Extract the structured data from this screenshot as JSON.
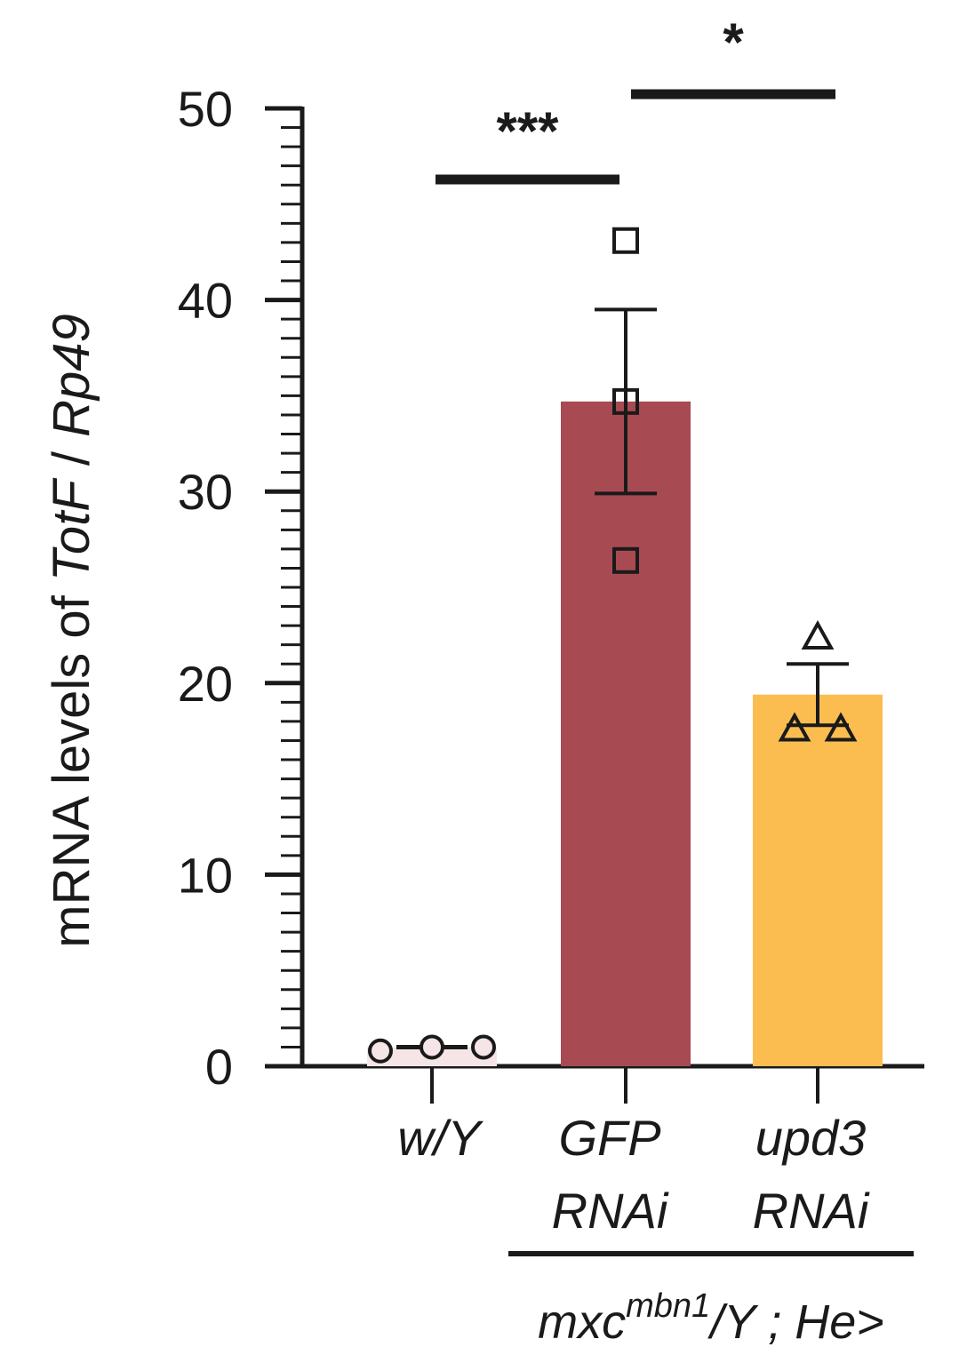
{
  "chart_data": {
    "type": "bar",
    "ylabel_parts": [
      {
        "text": "mRNA levels of ",
        "italic": false
      },
      {
        "text": "TotF",
        "italic": true
      },
      {
        "text": " / ",
        "italic": false
      },
      {
        "text": "Rp49",
        "italic": true
      }
    ],
    "ylim": [
      0,
      50
    ],
    "yticks": [
      0,
      10,
      20,
      30,
      40,
      50
    ],
    "minor_tick_step": 1,
    "categories": [
      {
        "lines": [
          "w/Y"
        ]
      },
      {
        "lines": [
          "GFP",
          "RNAi"
        ]
      },
      {
        "lines": [
          "upd3",
          "RNAi"
        ]
      }
    ],
    "values": [
      1.0,
      34.7,
      19.4
    ],
    "errors": [
      0.0,
      4.8,
      1.6
    ],
    "colors": [
      "#f6e5e7",
      "#a84a52",
      "#fbbd50"
    ],
    "points": [
      {
        "marker": "circle",
        "values": [
          0.8,
          1.0,
          1.0
        ]
      },
      {
        "marker": "square",
        "values": [
          43.1,
          34.7,
          26.4
        ]
      },
      {
        "marker": "triangle",
        "values": [
          22.4,
          17.6,
          17.6
        ]
      }
    ],
    "significance": [
      {
        "from": 0,
        "to": 1,
        "label": "***"
      },
      {
        "from": 1,
        "to": 2,
        "label": "*"
      }
    ],
    "group_label": {
      "from": 1,
      "to": 2,
      "base": "mxc",
      "sup": "mbn1",
      "rest": "/Y ; He>"
    }
  }
}
